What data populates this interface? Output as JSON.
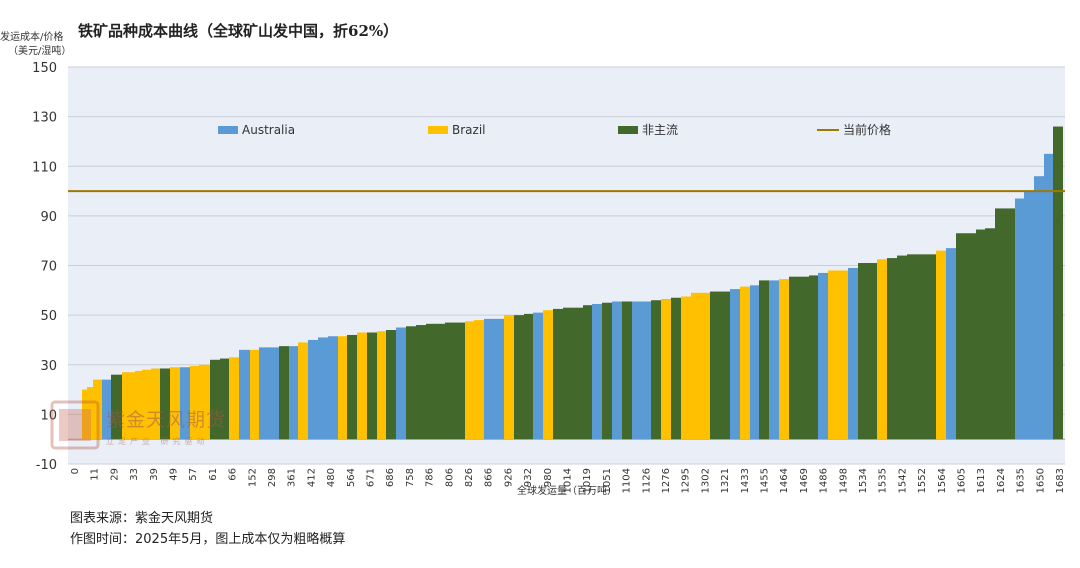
{
  "title": "铁矿品种成本曲线（全球矿山发中国，折62%）",
  "y_axis_label_line1": "发运成本/价格",
  "y_axis_label_line2": "（美元/湿吨）",
  "footer": {
    "source": "图表来源：紫金天风期货",
    "note": "作图时间：2025年5月，图上成本仅为粗略概算"
  },
  "watermark": {
    "text": "紫金天风期货",
    "subtext": "立足产业 研究驱动"
  },
  "chart_data": {
    "type": "bar",
    "title": "铁矿品种成本曲线（全球矿山发中国，折62%）",
    "xlabel": "全球发运量（百万吨）",
    "ylabel": "发运成本/价格（美元/湿吨）",
    "ylim": [
      -10,
      150
    ],
    "yticks": [
      -10,
      10,
      30,
      50,
      70,
      90,
      110,
      130,
      150
    ],
    "grid": true,
    "legend_position": "top",
    "current_price": 100,
    "x_tick_labels": [
      "0",
      "11",
      "29",
      "33",
      "39",
      "49",
      "57",
      "61",
      "66",
      "152",
      "298",
      "361",
      "412",
      "480",
      "564",
      "671",
      "686",
      "758",
      "786",
      "806",
      "826",
      "866",
      "926",
      "932",
      "980",
      "1014",
      "1019",
      "1051",
      "1104",
      "1126",
      "1276",
      "1295",
      "1302",
      "1321",
      "1433",
      "1455",
      "1464",
      "1469",
      "1486",
      "1498",
      "1534",
      "1535",
      "1542",
      "1552",
      "1564",
      "1605",
      "1613",
      "1624",
      "1635",
      "1650",
      "1683"
    ],
    "legend": [
      {
        "name": "Australia",
        "color": "#5b9bd5",
        "kind": "bar"
      },
      {
        "name": "Brazil",
        "color": "#ffc000",
        "kind": "bar"
      },
      {
        "name": "非主流",
        "color": "#43682b",
        "kind": "bar"
      },
      {
        "name": "当前价格",
        "color": "#9c7a00",
        "kind": "line"
      }
    ],
    "segments": [
      {
        "x0": 82,
        "x1": 87,
        "y": 20,
        "c": "B"
      },
      {
        "x0": 87,
        "x1": 93,
        "y": 21,
        "c": "B"
      },
      {
        "x0": 93,
        "x1": 102,
        "y": 24,
        "c": "B"
      },
      {
        "x0": 102,
        "x1": 111,
        "y": 24,
        "c": "A"
      },
      {
        "x0": 111,
        "x1": 122,
        "y": 26,
        "c": "G"
      },
      {
        "x0": 122,
        "x1": 135,
        "y": 27,
        "c": "B"
      },
      {
        "x0": 135,
        "x1": 142,
        "y": 27.5,
        "c": "B"
      },
      {
        "x0": 142,
        "x1": 151,
        "y": 28,
        "c": "B"
      },
      {
        "x0": 151,
        "x1": 160,
        "y": 28.5,
        "c": "B"
      },
      {
        "x0": 160,
        "x1": 170,
        "y": 28.5,
        "c": "G"
      },
      {
        "x0": 170,
        "x1": 180,
        "y": 29,
        "c": "B"
      },
      {
        "x0": 180,
        "x1": 190,
        "y": 29,
        "c": "A"
      },
      {
        "x0": 190,
        "x1": 199,
        "y": 29.5,
        "c": "B"
      },
      {
        "x0": 199,
        "x1": 210,
        "y": 30,
        "c": "B"
      },
      {
        "x0": 210,
        "x1": 220,
        "y": 32,
        "c": "G"
      },
      {
        "x0": 220,
        "x1": 229,
        "y": 32.5,
        "c": "G"
      },
      {
        "x0": 229,
        "x1": 239,
        "y": 33,
        "c": "B"
      },
      {
        "x0": 239,
        "x1": 250,
        "y": 36,
        "c": "A"
      },
      {
        "x0": 250,
        "x1": 259,
        "y": 36,
        "c": "B"
      },
      {
        "x0": 259,
        "x1": 279,
        "y": 37,
        "c": "A"
      },
      {
        "x0": 279,
        "x1": 289,
        "y": 37.5,
        "c": "G"
      },
      {
        "x0": 289,
        "x1": 298,
        "y": 37.5,
        "c": "A"
      },
      {
        "x0": 298,
        "x1": 308,
        "y": 39,
        "c": "B"
      },
      {
        "x0": 308,
        "x1": 318,
        "y": 40,
        "c": "A"
      },
      {
        "x0": 318,
        "x1": 328,
        "y": 41,
        "c": "A"
      },
      {
        "x0": 328,
        "x1": 338,
        "y": 41.5,
        "c": "A"
      },
      {
        "x0": 338,
        "x1": 347,
        "y": 41.5,
        "c": "B"
      },
      {
        "x0": 347,
        "x1": 357,
        "y": 42,
        "c": "G"
      },
      {
        "x0": 357,
        "x1": 367,
        "y": 43,
        "c": "B"
      },
      {
        "x0": 367,
        "x1": 377,
        "y": 43,
        "c": "G"
      },
      {
        "x0": 377,
        "x1": 386,
        "y": 43.5,
        "c": "B"
      },
      {
        "x0": 386,
        "x1": 396,
        "y": 44,
        "c": "G"
      },
      {
        "x0": 396,
        "x1": 406,
        "y": 45,
        "c": "A"
      },
      {
        "x0": 406,
        "x1": 416,
        "y": 45.5,
        "c": "G"
      },
      {
        "x0": 416,
        "x1": 426,
        "y": 46,
        "c": "G"
      },
      {
        "x0": 426,
        "x1": 445,
        "y": 46.5,
        "c": "G"
      },
      {
        "x0": 445,
        "x1": 465,
        "y": 47,
        "c": "G"
      },
      {
        "x0": 465,
        "x1": 474,
        "y": 47.5,
        "c": "B"
      },
      {
        "x0": 474,
        "x1": 484,
        "y": 48,
        "c": "B"
      },
      {
        "x0": 484,
        "x1": 494,
        "y": 48.5,
        "c": "A"
      },
      {
        "x0": 494,
        "x1": 504,
        "y": 48.5,
        "c": "A"
      },
      {
        "x0": 504,
        "x1": 514,
        "y": 50,
        "c": "B"
      },
      {
        "x0": 514,
        "x1": 524,
        "y": 50,
        "c": "G"
      },
      {
        "x0": 524,
        "x1": 533,
        "y": 50.5,
        "c": "G"
      },
      {
        "x0": 533,
        "x1": 543,
        "y": 51,
        "c": "A"
      },
      {
        "x0": 543,
        "x1": 553,
        "y": 52,
        "c": "B"
      },
      {
        "x0": 553,
        "x1": 563,
        "y": 52.5,
        "c": "G"
      },
      {
        "x0": 563,
        "x1": 583,
        "y": 53,
        "c": "G"
      },
      {
        "x0": 583,
        "x1": 592,
        "y": 54,
        "c": "G"
      },
      {
        "x0": 592,
        "x1": 602,
        "y": 54.5,
        "c": "A"
      },
      {
        "x0": 602,
        "x1": 612,
        "y": 55,
        "c": "G"
      },
      {
        "x0": 612,
        "x1": 622,
        "y": 55.5,
        "c": "A"
      },
      {
        "x0": 622,
        "x1": 632,
        "y": 55.5,
        "c": "G"
      },
      {
        "x0": 632,
        "x1": 651,
        "y": 55.5,
        "c": "A"
      },
      {
        "x0": 651,
        "x1": 661,
        "y": 56,
        "c": "G"
      },
      {
        "x0": 661,
        "x1": 671,
        "y": 56.5,
        "c": "B"
      },
      {
        "x0": 671,
        "x1": 681,
        "y": 57,
        "c": "G"
      },
      {
        "x0": 681,
        "x1": 691,
        "y": 57.5,
        "c": "B"
      },
      {
        "x0": 691,
        "x1": 710,
        "y": 59,
        "c": "B"
      },
      {
        "x0": 710,
        "x1": 730,
        "y": 59.5,
        "c": "G"
      },
      {
        "x0": 730,
        "x1": 740,
        "y": 60.5,
        "c": "A"
      },
      {
        "x0": 740,
        "x1": 750,
        "y": 61.5,
        "c": "B"
      },
      {
        "x0": 750,
        "x1": 759,
        "y": 62,
        "c": "A"
      },
      {
        "x0": 759,
        "x1": 769,
        "y": 64,
        "c": "G"
      },
      {
        "x0": 769,
        "x1": 779,
        "y": 64,
        "c": "A"
      },
      {
        "x0": 779,
        "x1": 789,
        "y": 64.5,
        "c": "B"
      },
      {
        "x0": 789,
        "x1": 809,
        "y": 65.5,
        "c": "G"
      },
      {
        "x0": 809,
        "x1": 818,
        "y": 66,
        "c": "G"
      },
      {
        "x0": 818,
        "x1": 828,
        "y": 67,
        "c": "A"
      },
      {
        "x0": 828,
        "x1": 848,
        "y": 68,
        "c": "B"
      },
      {
        "x0": 848,
        "x1": 858,
        "y": 69,
        "c": "A"
      },
      {
        "x0": 858,
        "x1": 877,
        "y": 71,
        "c": "G"
      },
      {
        "x0": 877,
        "x1": 887,
        "y": 72.5,
        "c": "B"
      },
      {
        "x0": 887,
        "x1": 897,
        "y": 73,
        "c": "G"
      },
      {
        "x0": 897,
        "x1": 907,
        "y": 74,
        "c": "G"
      },
      {
        "x0": 907,
        "x1": 936,
        "y": 74.5,
        "c": "G"
      },
      {
        "x0": 936,
        "x1": 946,
        "y": 76,
        "c": "B"
      },
      {
        "x0": 946,
        "x1": 956,
        "y": 77,
        "c": "A"
      },
      {
        "x0": 956,
        "x1": 976,
        "y": 83,
        "c": "G"
      },
      {
        "x0": 976,
        "x1": 985,
        "y": 84.5,
        "c": "G"
      },
      {
        "x0": 985,
        "x1": 995,
        "y": 85,
        "c": "G"
      },
      {
        "x0": 995,
        "x1": 1015,
        "y": 93,
        "c": "G"
      },
      {
        "x0": 1015,
        "x1": 1024,
        "y": 97,
        "c": "A"
      },
      {
        "x0": 1024,
        "x1": 1034,
        "y": 100,
        "c": "A"
      },
      {
        "x0": 1034,
        "x1": 1044,
        "y": 106,
        "c": "A"
      },
      {
        "x0": 1044,
        "x1": 1053,
        "y": 115,
        "c": "A"
      },
      {
        "x0": 1053,
        "x1": 1063,
        "y": 126,
        "c": "G"
      }
    ]
  }
}
